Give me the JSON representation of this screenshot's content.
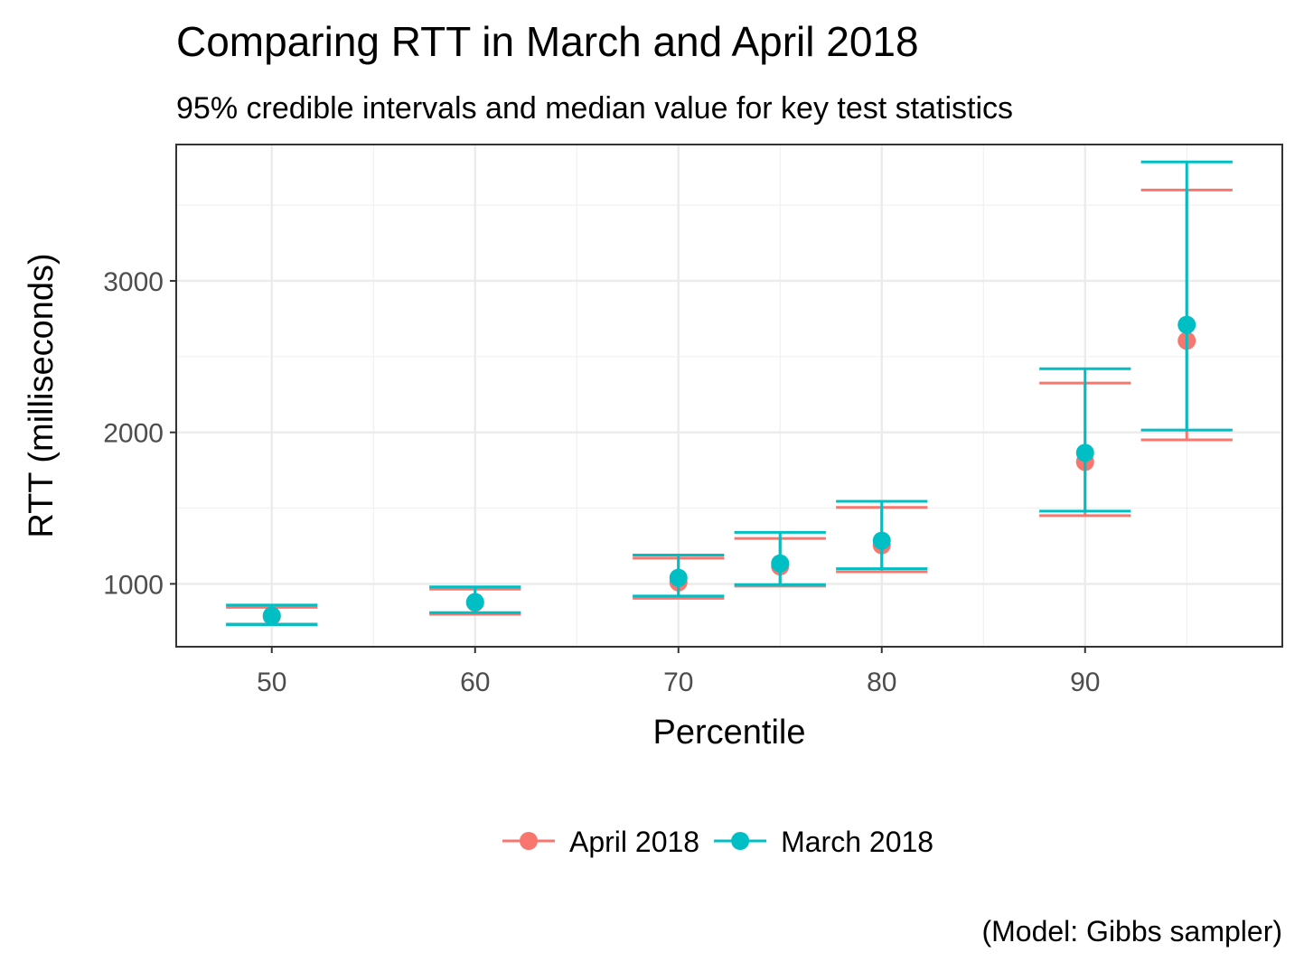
{
  "chart_data": {
    "type": "errorbar",
    "title": "Comparing RTT in March and April 2018",
    "subtitle": "95% credible intervals and median value for key test statistics",
    "xlabel": "Percentile",
    "ylabel": "RTT (milliseconds)",
    "caption": "(Model: Gibbs sampler)",
    "xlim": [
      45.3,
      99.7
    ],
    "ylim": [
      585,
      3900
    ],
    "x_ticks": [
      50,
      60,
      70,
      80,
      90
    ],
    "y_ticks": [
      1000,
      2000,
      3000
    ],
    "grid": true,
    "legend_position": "bottom",
    "series": [
      {
        "name": "April 2018",
        "color": "#F8766D",
        "points": [
          {
            "x": 50,
            "median": 785,
            "lower": 735,
            "upper": 845
          },
          {
            "x": 60,
            "median": 875,
            "lower": 800,
            "upper": 965
          },
          {
            "x": 70,
            "median": 1010,
            "lower": 905,
            "upper": 1170
          },
          {
            "x": 75,
            "median": 1115,
            "lower": 985,
            "upper": 1300
          },
          {
            "x": 80,
            "median": 1255,
            "lower": 1080,
            "upper": 1505
          },
          {
            "x": 90,
            "median": 1805,
            "lower": 1450,
            "upper": 2325
          },
          {
            "x": 95,
            "median": 2605,
            "lower": 1950,
            "upper": 3600
          }
        ]
      },
      {
        "name": "March 2018",
        "color": "#00BFC4",
        "points": [
          {
            "x": 50,
            "median": 790,
            "lower": 730,
            "upper": 860
          },
          {
            "x": 60,
            "median": 880,
            "lower": 810,
            "upper": 980
          },
          {
            "x": 70,
            "median": 1040,
            "lower": 920,
            "upper": 1190
          },
          {
            "x": 75,
            "median": 1135,
            "lower": 995,
            "upper": 1340
          },
          {
            "x": 80,
            "median": 1285,
            "lower": 1100,
            "upper": 1545
          },
          {
            "x": 90,
            "median": 1865,
            "lower": 1480,
            "upper": 2420
          },
          {
            "x": 95,
            "median": 2710,
            "lower": 2015,
            "upper": 3785
          }
        ]
      }
    ]
  }
}
